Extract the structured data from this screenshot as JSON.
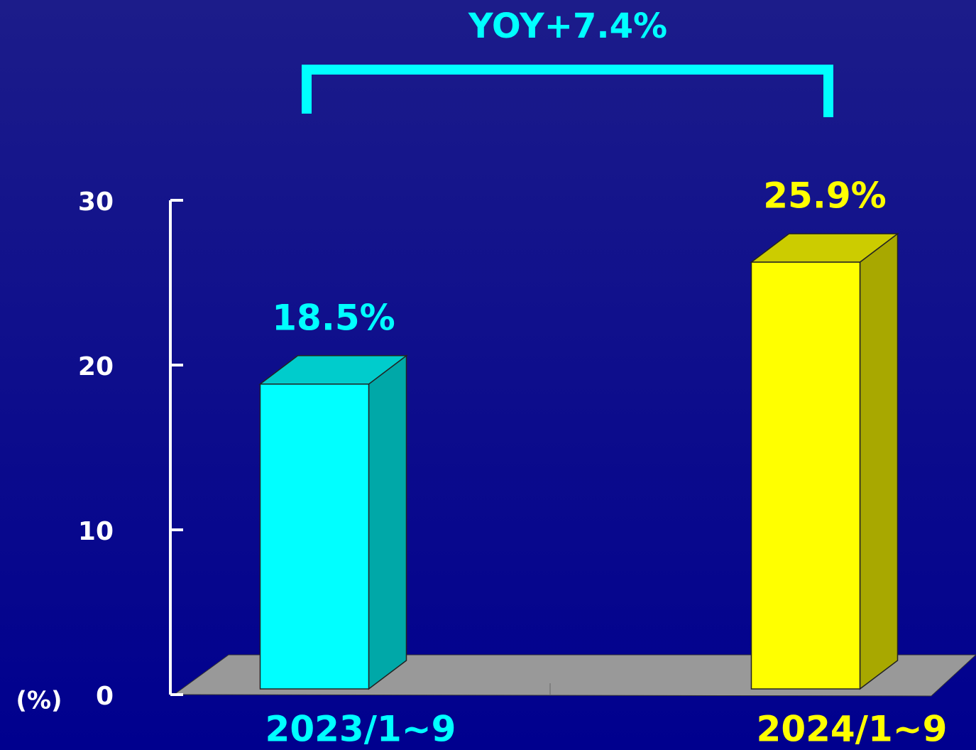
{
  "chart_data": {
    "type": "bar3d",
    "annotation": "YOY+7.4%",
    "y_unit": "(%)",
    "categories": [
      "2023/1~9",
      "2024/1~9"
    ],
    "values": [
      18.5,
      25.9
    ],
    "value_labels": [
      "18.5%",
      "25.9%"
    ],
    "colors": [
      "#00ffff",
      "#ffff00"
    ],
    "ylim": [
      0,
      30
    ],
    "yticks": [
      0,
      10,
      20,
      30
    ]
  }
}
